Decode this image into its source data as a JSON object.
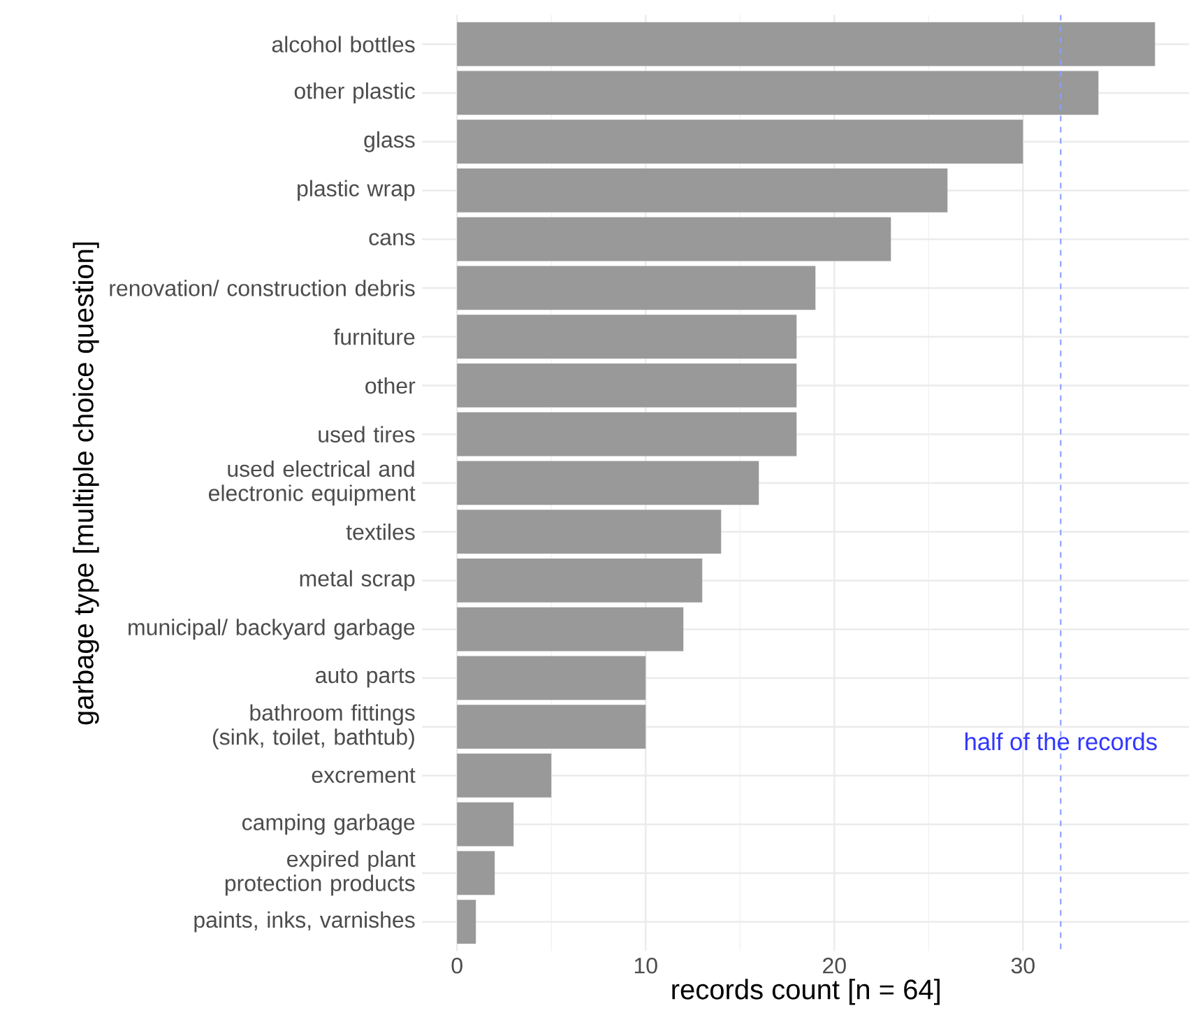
{
  "chart_data": {
    "type": "bar",
    "orientation": "horizontal",
    "xlabel": "records count [n = 64]",
    "ylabel": "garbage type [multiple choice question]",
    "categories": [
      "alcohol bottles",
      "other plastic",
      "glass",
      "plastic wrap",
      "cans",
      "renovation/ construction debris",
      "furniture",
      "other",
      "used tires",
      "used electrical and electronic equipment",
      "textiles",
      "metal scrap",
      "municipal/ backyard garbage",
      "auto parts",
      "bathroom fittings (sink, toilet, bathtub)",
      "excrement",
      "camping garbage",
      "expired plant protection products",
      "paints, inks, varnishes"
    ],
    "values": [
      37,
      34,
      30,
      26,
      23,
      19,
      18,
      18,
      18,
      16,
      14,
      13,
      12,
      10,
      10,
      5,
      3,
      2,
      1
    ],
    "color": "#999999",
    "xlim": [
      -1.85,
      38.85
    ],
    "xticks": [
      0,
      10,
      20,
      30
    ],
    "grid": true,
    "ref_lines": [
      {
        "axis": "x",
        "value": 32,
        "label": "half of the records",
        "color": "#8d9eff",
        "line_style": "dashed"
      }
    ]
  }
}
